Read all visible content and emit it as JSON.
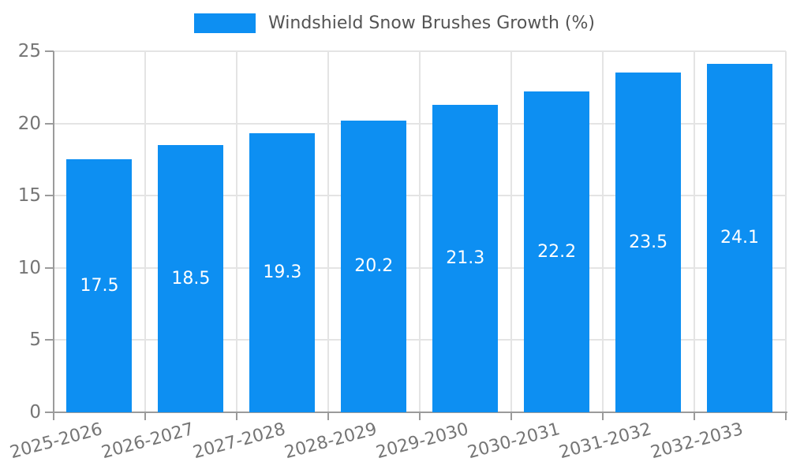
{
  "chart_data": {
    "type": "bar",
    "title": "Windshield Snow Brushes Growth (%)",
    "legend": {
      "label": "Windshield Snow Brushes Growth (%)",
      "position": "top-center"
    },
    "categories": [
      "2025-2026",
      "2026-2027",
      "2027-2028",
      "2028-2029",
      "2029-2030",
      "2030-2031",
      "2031-2032",
      "2032-2033"
    ],
    "values": [
      17.5,
      18.5,
      19.3,
      20.2,
      21.3,
      22.2,
      23.5,
      24.1
    ],
    "xlabel": "",
    "ylabel": "",
    "ylim": [
      0,
      25
    ],
    "yticks": [
      0,
      5,
      10,
      15,
      20,
      25
    ],
    "grid": true,
    "x_tick_rotation_deg": -15,
    "colors": {
      "bar": "#0d8ff2",
      "grid": "#e4e4e4",
      "axis": "#9b9b9b",
      "tick_label": "#757575",
      "legend_text": "#545454",
      "value_label": "#ffffff",
      "background": "#ffffff"
    }
  }
}
